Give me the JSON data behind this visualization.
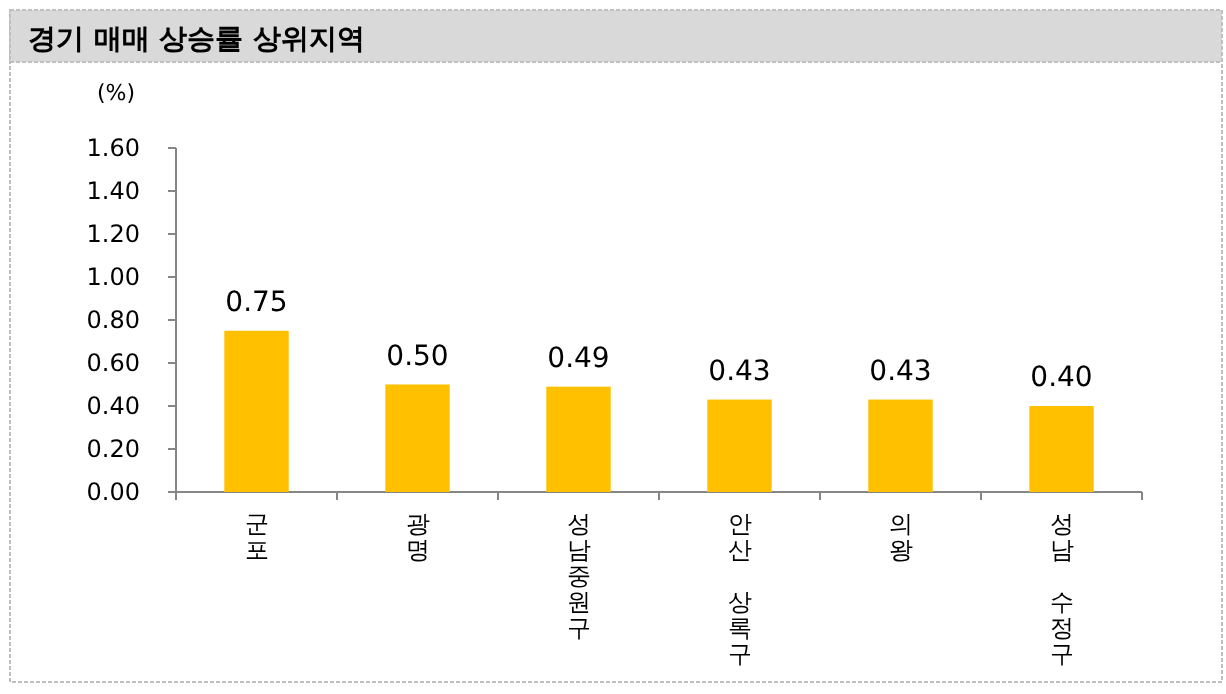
{
  "chart_data": {
    "type": "bar",
    "title": "경기 매매 상승률 상위지역",
    "ylabel": "(%)",
    "categories": [
      "군포",
      "광명",
      "성남중원구",
      "안산 상록구",
      "의왕",
      "성남 수정구"
    ],
    "values": [
      0.75,
      0.5,
      0.49,
      0.43,
      0.43,
      0.4
    ],
    "value_labels": [
      "0.75",
      "0.50",
      "0.49",
      "0.43",
      "0.43",
      "0.40"
    ],
    "color": "#ffc000",
    "ylim": [
      0,
      1.6
    ],
    "yticks": [
      {
        "value": 0,
        "label": "0.00"
      },
      {
        "value": 0.2,
        "label": "0.20"
      },
      {
        "value": 0.4,
        "label": "0.40"
      },
      {
        "value": 0.6,
        "label": "0.60"
      },
      {
        "value": 0.8,
        "label": "0.80"
      },
      {
        "value": 1.0,
        "label": "1.00"
      },
      {
        "value": 1.2,
        "label": "1.20"
      },
      {
        "value": 1.4,
        "label": "1.40"
      },
      {
        "value": 1.6,
        "label": "1.60"
      }
    ],
    "grid": false
  }
}
